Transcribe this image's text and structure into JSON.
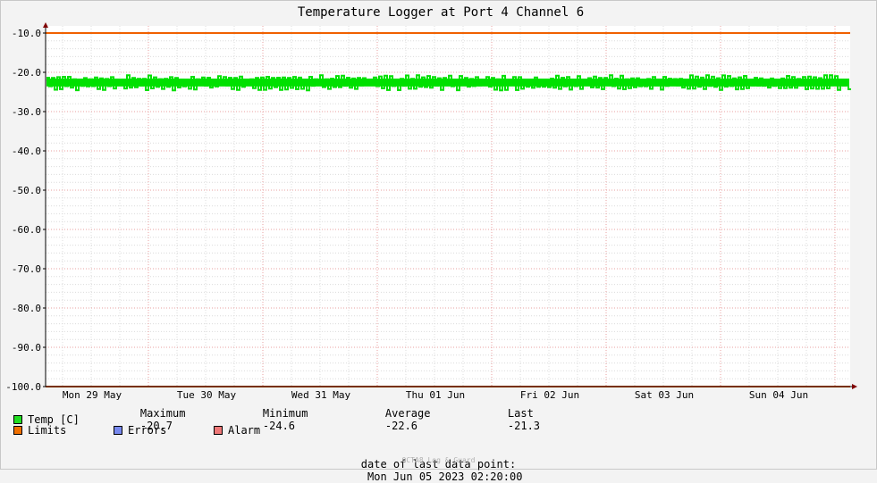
{
  "chart_data": {
    "type": "line",
    "title": "Temperature Logger at Port 4 Channel 6",
    "ylim": [
      -100.0,
      -10.0
    ],
    "y_ticks": [
      "-10.0",
      "-20.0",
      "-30.0",
      "-40.0",
      "-50.0",
      "-60.0",
      "-70.0",
      "-80.0",
      "-90.0",
      "-100.0"
    ],
    "x_ticks": [
      "Mon 29 May",
      "Tue 30 May",
      "Wed 31 May",
      "Thu 01 Jun",
      "Fri 02 Jun",
      "Sat 03 Jun",
      "Sun 04 Jun"
    ],
    "grid": true,
    "series": [
      {
        "name": "Temp [C]",
        "color": "#00e000",
        "band": [
          -24.6,
          -20.7
        ],
        "average": -22.6,
        "last": -21.3
      },
      {
        "name": "Limits",
        "color": "#f06000",
        "values": [
          -10.0,
          -100.0
        ]
      }
    ]
  },
  "legend": {
    "temp": {
      "label": "Temp [C]",
      "color": "#22dd22"
    },
    "limits": {
      "label": "Limits",
      "color": "#f07000"
    },
    "errors": {
      "label": "Errors",
      "color": "#7788ee"
    },
    "alarm": {
      "label": "Alarm",
      "color": "#ee7777"
    },
    "max_label": "Maximum",
    "max_value": "-20.7",
    "min_label": "Minimum",
    "min_value": "-24.6",
    "avg_label": "Average",
    "avg_value": "-22.6",
    "last_label": "Last",
    "last_value": "-21.3"
  },
  "footer": {
    "label": "date of last data point:",
    "value": "Mon Jun 05 2023 02:20:00",
    "watermark": "OCTA8 Log & Guard"
  }
}
